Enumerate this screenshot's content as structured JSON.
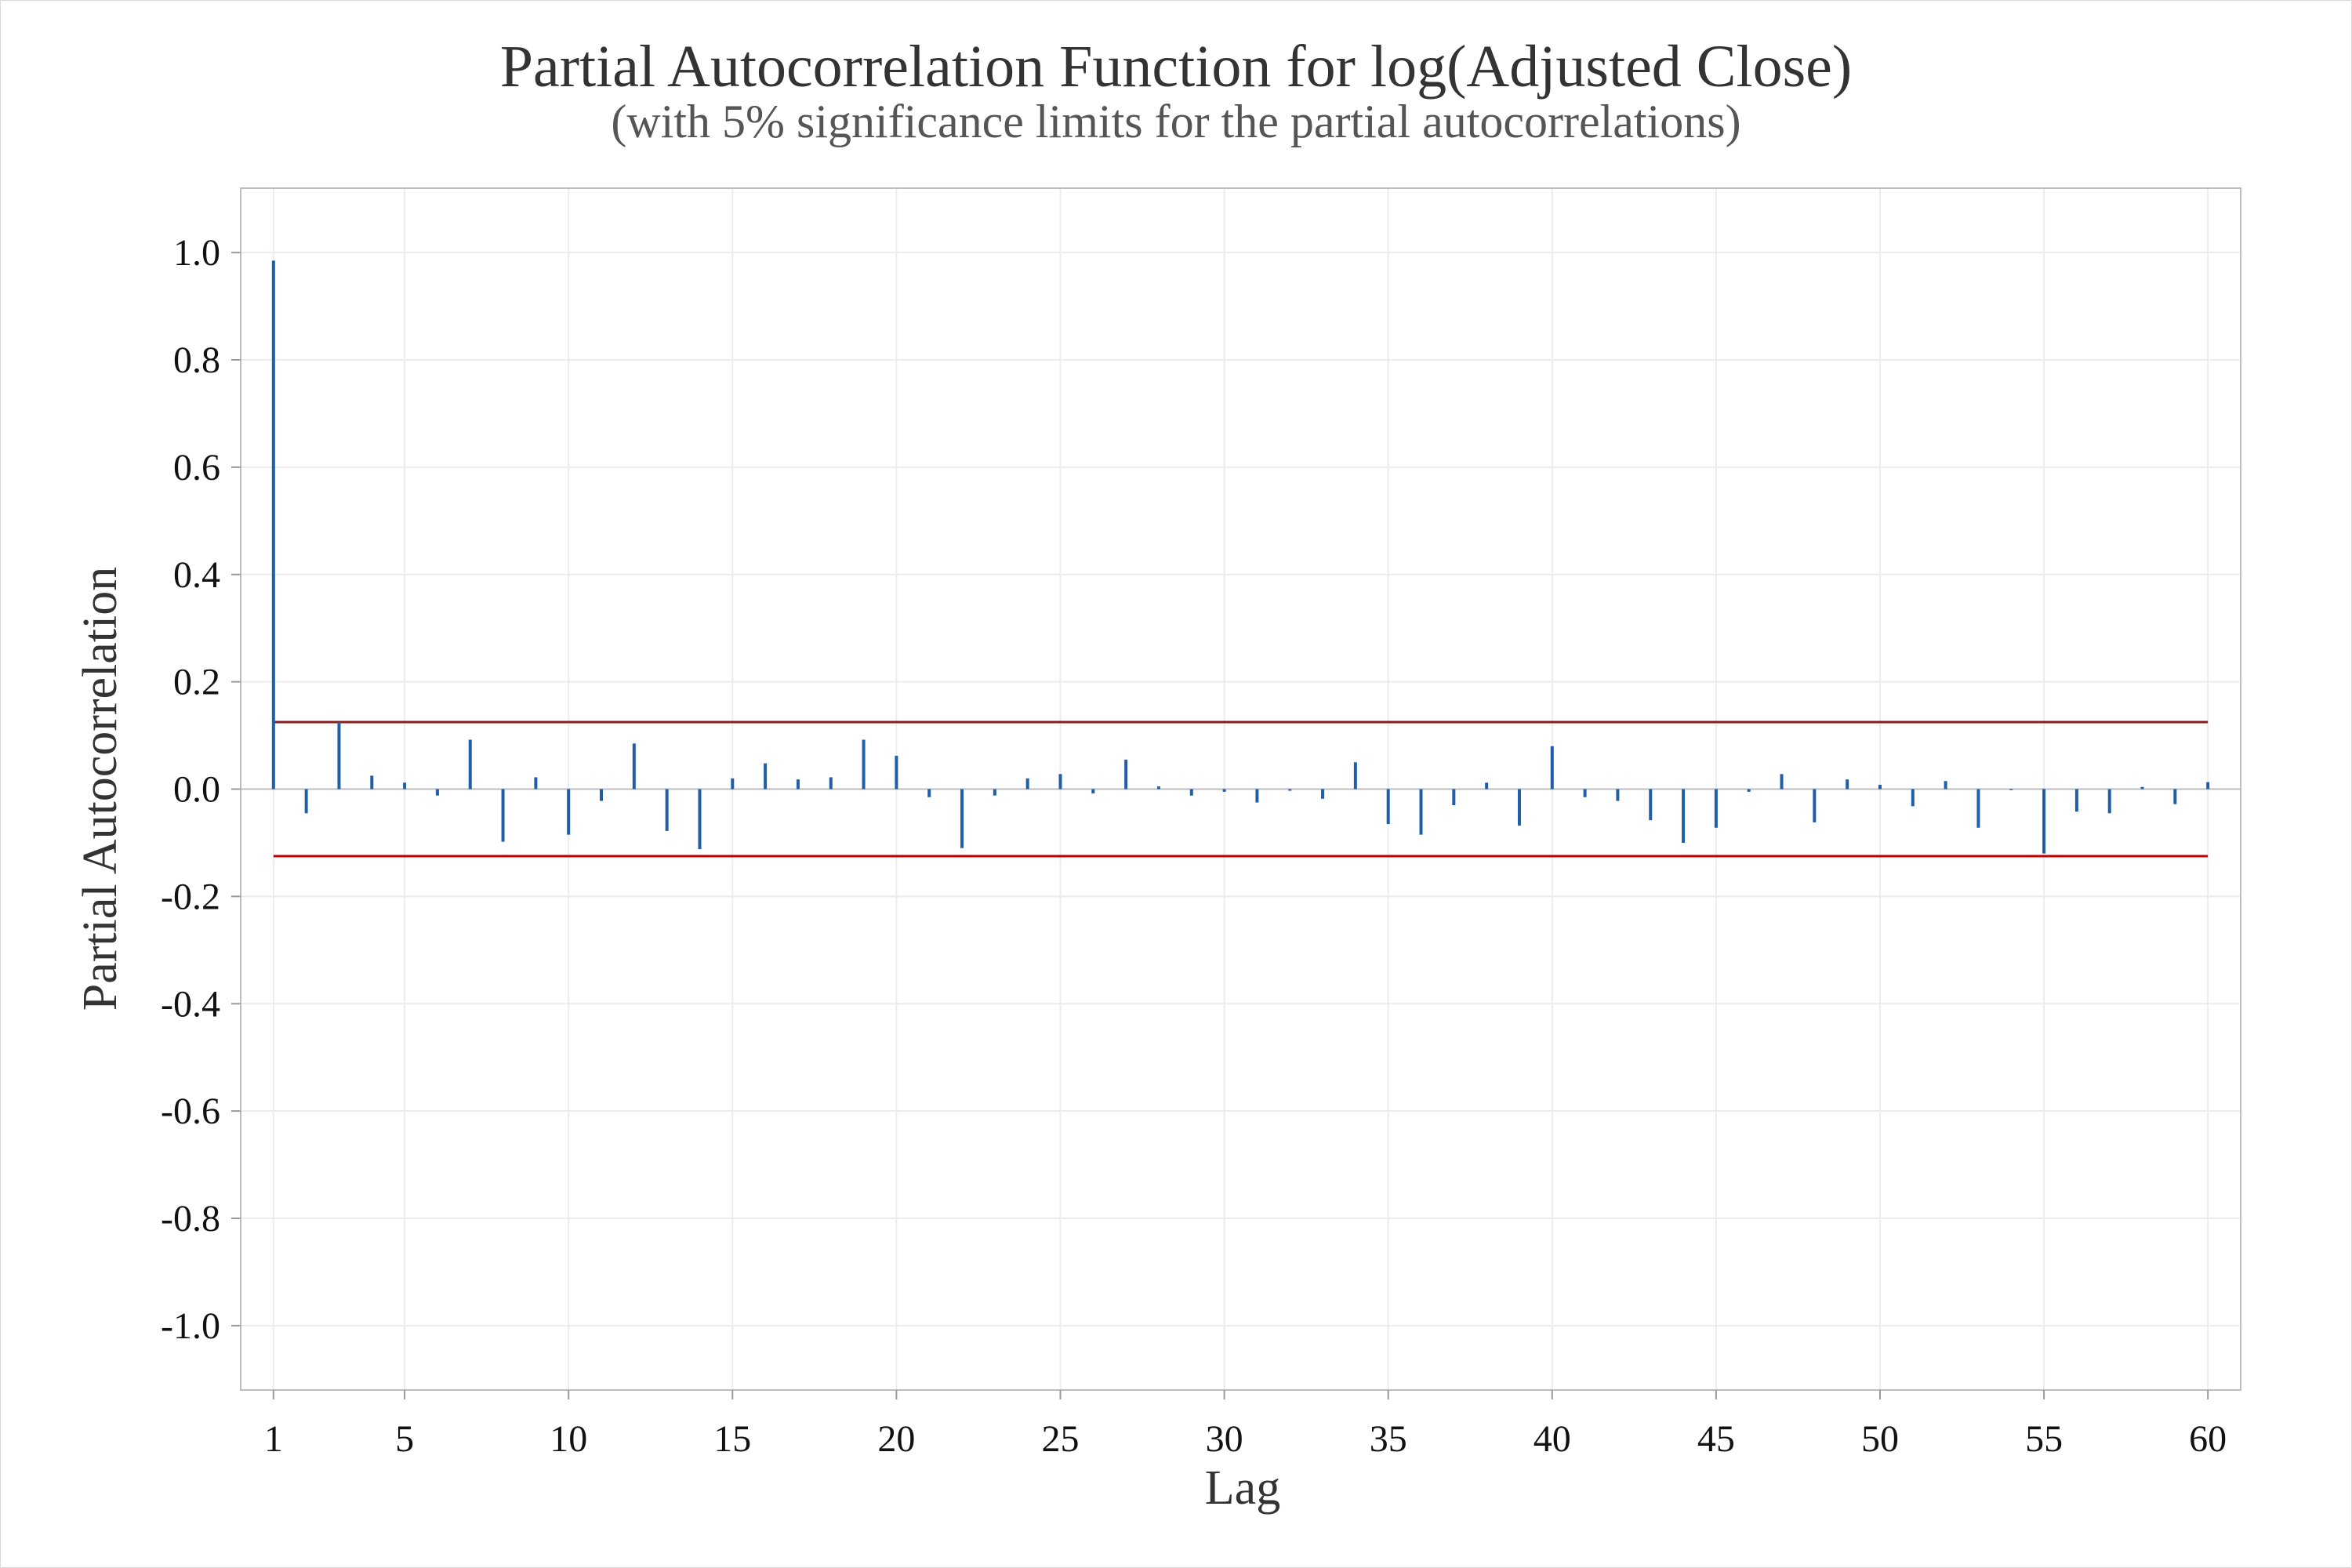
{
  "chart_data": {
    "type": "bar",
    "title": "Partial Autocorrelation Function for log(Adjusted Close)",
    "subtitle": "(with 5% significance limits for the partial autocorrelations)",
    "xlabel": "Lag",
    "ylabel": "Partial Autocorrelation",
    "xlim": [
      0,
      61
    ],
    "ylim": [
      -1.12,
      1.12
    ],
    "x_ticks": [
      1,
      5,
      10,
      15,
      20,
      25,
      30,
      35,
      40,
      45,
      50,
      55,
      60
    ],
    "y_ticks": [
      1.0,
      0.8,
      0.6,
      0.4,
      0.2,
      0.0,
      -0.2,
      -0.4,
      -0.6,
      -0.8,
      -1.0
    ],
    "y_tick_labels": [
      "1.0",
      "0.8",
      "0.6",
      "0.4",
      "0.2",
      "0.0",
      "-0.2",
      "-0.4",
      "-0.6",
      "-0.8",
      "-1.0"
    ],
    "significance_limits": [
      0.125,
      -0.125
    ],
    "lags": [
      1,
      2,
      3,
      4,
      5,
      6,
      7,
      8,
      9,
      10,
      11,
      12,
      13,
      14,
      15,
      16,
      17,
      18,
      19,
      20,
      21,
      22,
      23,
      24,
      25,
      26,
      27,
      28,
      29,
      30,
      31,
      32,
      33,
      34,
      35,
      36,
      37,
      38,
      39,
      40,
      41,
      42,
      43,
      44,
      45,
      46,
      47,
      48,
      49,
      50,
      51,
      52,
      53,
      54,
      55,
      56,
      57,
      58,
      59,
      60
    ],
    "values": [
      0.985,
      -0.045,
      0.125,
      0.025,
      0.012,
      -0.012,
      0.092,
      -0.098,
      0.022,
      -0.085,
      -0.022,
      0.085,
      -0.078,
      -0.112,
      0.02,
      0.048,
      0.018,
      0.022,
      0.092,
      0.062,
      -0.015,
      -0.11,
      -0.012,
      0.02,
      0.028,
      -0.008,
      0.055,
      0.005,
      -0.012,
      -0.005,
      -0.025,
      -0.003,
      -0.018,
      0.05,
      -0.065,
      -0.085,
      -0.03,
      0.012,
      -0.068,
      0.08,
      -0.015,
      -0.022,
      -0.058,
      -0.1,
      -0.072,
      -0.005,
      0.028,
      -0.062,
      0.018,
      0.008,
      -0.032,
      0.015,
      -0.072,
      -0.002,
      -0.12,
      -0.042,
      -0.045,
      0.004,
      -0.028,
      0.013
    ],
    "grid": true,
    "legend": "none",
    "colors": {
      "spike": "#1f5fa8",
      "limit": "#c00000",
      "grid": "#ececec"
    }
  }
}
